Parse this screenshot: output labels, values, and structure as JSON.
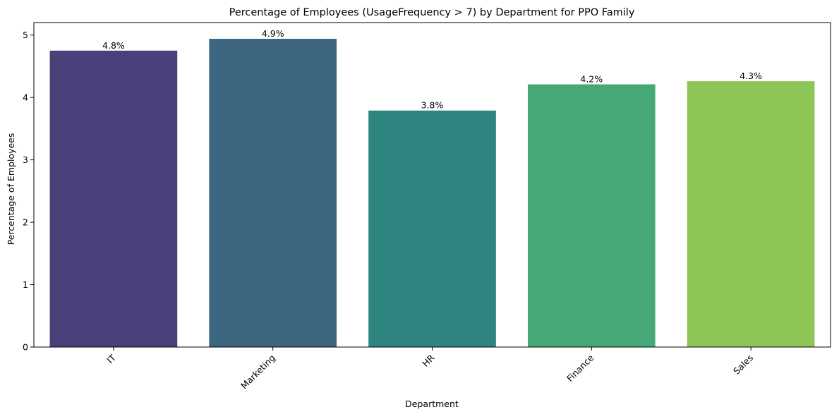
{
  "chart_data": {
    "type": "bar",
    "title": "Percentage of Employees (UsageFrequency > 7) by Department for PPO Family",
    "xlabel": "Department",
    "ylabel": "Percentage of Employees",
    "categories": [
      "IT",
      "Marketing",
      "HR",
      "Finance",
      "Sales"
    ],
    "values": [
      4.75,
      4.94,
      3.79,
      4.21,
      4.26
    ],
    "data_labels": [
      "4.8%",
      "4.9%",
      "3.8%",
      "4.2%",
      "4.3%"
    ],
    "colors": [
      "#48417a",
      "#3d6681",
      "#2e847e",
      "#46a877",
      "#8ec557"
    ],
    "ylim": [
      0,
      5.2
    ],
    "yticks": [
      0,
      1,
      2,
      3,
      4,
      5
    ],
    "ytick_labels": [
      "0",
      "1",
      "2",
      "3",
      "4",
      "5"
    ],
    "grid": false,
    "legend": "none"
  }
}
